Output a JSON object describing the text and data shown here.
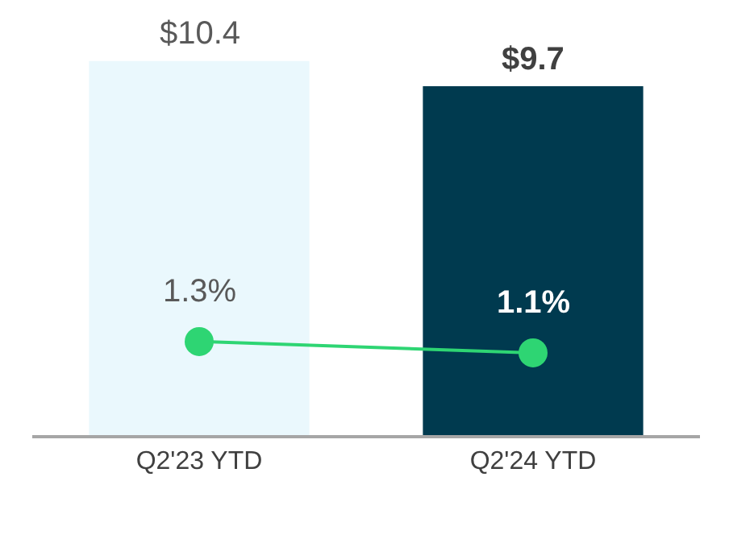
{
  "chart_data": {
    "type": "bar",
    "categories": [
      "Q2'23 YTD",
      "Q2'24 YTD"
    ],
    "ylim": [
      0,
      12.1
    ],
    "y2lim": [
      -0.36,
      7.36
    ],
    "tick_labels": "x",
    "series": [
      {
        "colors": [
          "#eaf8fd",
          "#003a4f"
        ],
        "values": [
          10.4,
          9.7
        ],
        "value_labels": [
          "$10.4",
          "$9.7"
        ]
      },
      {
        "type": "line",
        "axis": "y2",
        "color": "#2ed573",
        "marker": "circle",
        "values": [
          1.3,
          1.1
        ],
        "value_labels": [
          "1.3%",
          "1.1%"
        ]
      }
    ]
  }
}
